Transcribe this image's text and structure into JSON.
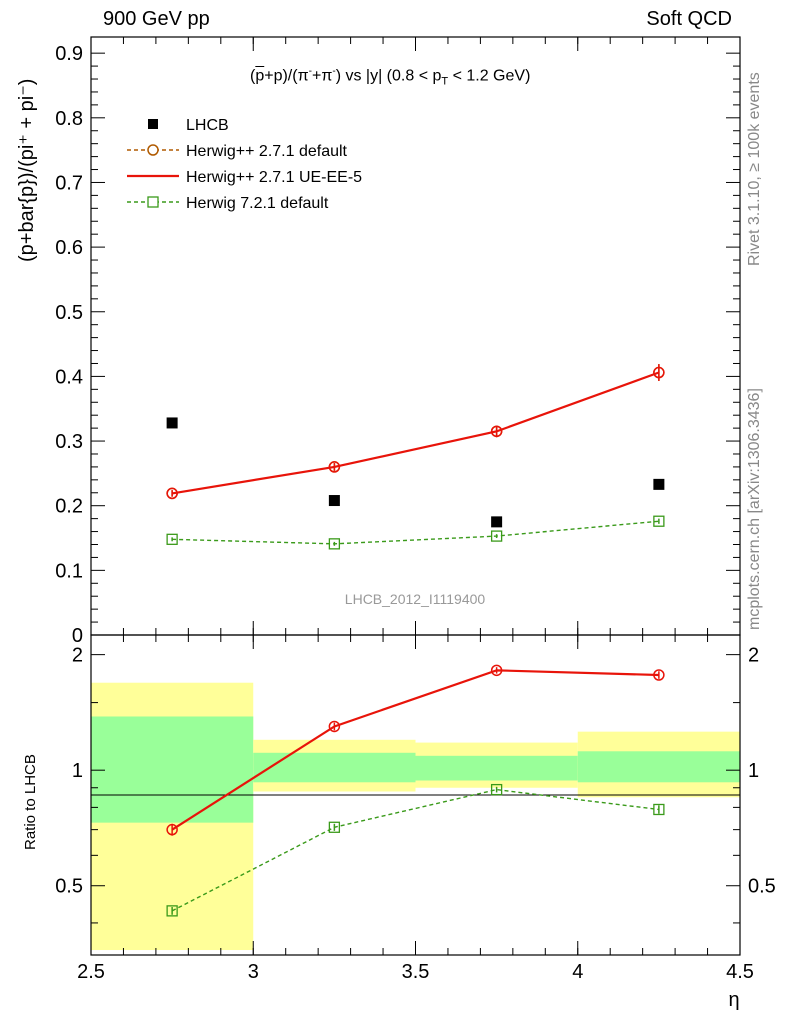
{
  "header": {
    "left": "900 GeV pp",
    "right": "Soft QCD"
  },
  "side_labels": {
    "rivet": "Rivet 3.1.10, ≥ 100k events",
    "mcplots": "mcplots.cern.ch [arXiv:1306.3436]"
  },
  "chart_data": [
    {
      "type": "scatter",
      "panel": "main",
      "title_parts": {
        "p_bar": "p",
        "rest1": "+p)/(π",
        "minus1": "-",
        "plus": "+π",
        "minus2": "-",
        "rest2": ") vs |y| (0.8 < p",
        "sub": "T",
        "rest3": " < 1.2 GeV)"
      },
      "ylabel": "(p+bar{p})/(pi⁺ + pi⁻)",
      "xlabel": "η",
      "watermark": "LHCB_2012_I1119400",
      "xlim": [
        2.5,
        4.5
      ],
      "ylim": [
        0,
        0.925
      ],
      "yticks": [
        0,
        0.1,
        0.2,
        0.3,
        0.4,
        0.5,
        0.6,
        0.7,
        0.8,
        0.9
      ],
      "ytick_labels": [
        "0",
        "0.1",
        "0.2",
        "0.3",
        "0.4",
        "0.5",
        "0.6",
        "0.7",
        "0.8",
        "0.9"
      ],
      "x": [
        2.75,
        3.25,
        3.75,
        4.25
      ],
      "series": [
        {
          "name": "LHCB",
          "style": "data",
          "color": "#000000",
          "values": [
            0.328,
            0.208,
            0.175,
            0.233
          ]
        },
        {
          "name": "Herwig++ 2.7.1 default",
          "style": "dashed-circle",
          "color": "#b05a00",
          "values": [
            0.219,
            0.26,
            0.315,
            0.406
          ],
          "errors": [
            0.005,
            0.006,
            0.009,
            0.013
          ]
        },
        {
          "name": "Herwig++ 2.7.1 UE-EE-5",
          "style": "solid-circle",
          "color": "#e8140a",
          "values": [
            0.219,
            0.26,
            0.315,
            0.406
          ],
          "errors": [
            0.005,
            0.006,
            0.009,
            0.013
          ]
        },
        {
          "name": "Herwig 7.2.1 default",
          "style": "dashed-square",
          "color": "#3a9a1a",
          "values": [
            0.148,
            0.141,
            0.153,
            0.176
          ],
          "errors": [
            0.003,
            0.003,
            0.003,
            0.004
          ]
        }
      ]
    },
    {
      "type": "line",
      "panel": "ratio",
      "ylabel": "Ratio to LHCB",
      "xlim": [
        2.5,
        4.5
      ],
      "ylim": [
        0.33,
        2.25
      ],
      "yticks": [
        0.5,
        1,
        2
      ],
      "ytick_labels": [
        "0.5",
        "1",
        "2"
      ],
      "xticks": [
        2.5,
        3,
        3.5,
        4,
        4.5
      ],
      "xtick_labels": [
        "2.5",
        "3",
        "3.5",
        "4",
        "4.5"
      ],
      "x": [
        2.75,
        3.25,
        3.75,
        4.25
      ],
      "bands": [
        {
          "x0": 2.5,
          "x1": 3.0,
          "inner": [
            0.73,
            1.38
          ],
          "outer": [
            0.34,
            1.69
          ]
        },
        {
          "x0": 3.0,
          "x1": 3.5,
          "inner": [
            0.93,
            1.11
          ],
          "outer": [
            0.88,
            1.2
          ]
        },
        {
          "x0": 3.5,
          "x1": 4.0,
          "inner": [
            0.94,
            1.09
          ],
          "outer": [
            0.9,
            1.18
          ]
        },
        {
          "x0": 4.0,
          "x1": 4.5,
          "inner": [
            0.93,
            1.12
          ],
          "outer": [
            0.85,
            1.26
          ]
        }
      ],
      "series": [
        {
          "name": "Herwig++ 2.7.1 UE-EE-5",
          "style": "solid-circle",
          "color": "#e8140a",
          "values": [
            0.7,
            1.3,
            1.82,
            1.77
          ],
          "errors": [
            0.025,
            0.03,
            0.035,
            0.04
          ]
        },
        {
          "name": "Herwig 7.2.1 default",
          "style": "dashed-square",
          "color": "#3a9a1a",
          "values": [
            0.43,
            0.71,
            0.89,
            0.79
          ],
          "errors": [
            0.01,
            0.015,
            0.015,
            0.02
          ]
        }
      ]
    }
  ]
}
